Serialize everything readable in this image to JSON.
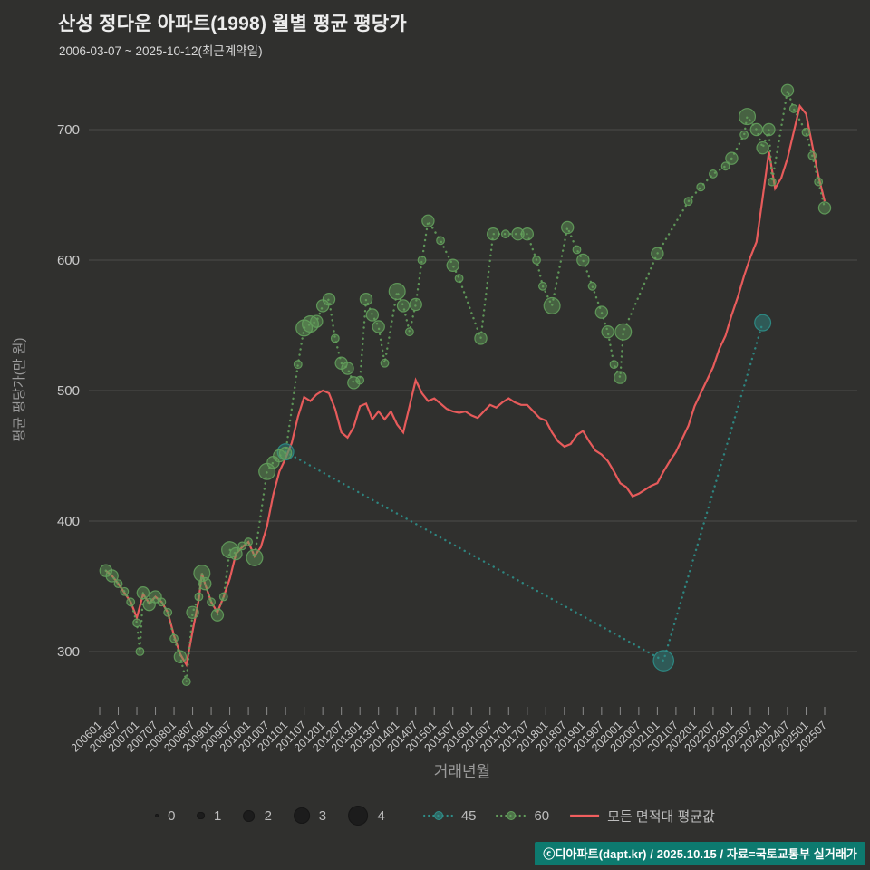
{
  "header": {
    "title": "산성 정다운 아파트(1998) 월별 평균 평당가",
    "subtitle": "2006-03-07 ~ 2025-10-12(최근계약일)"
  },
  "footer": {
    "credit": "ⓒ디아파트(dapt.kr) / 2025.10.15 / 자료=국토교통부 실거래가"
  },
  "chart_data": {
    "type": "scatter",
    "title": "산성 정다운 아파트(1998) 월별 평균 평당가",
    "subtitle": "2006-03-07 ~ 2025-10-12(최근계약일)",
    "xlabel": "거래년월",
    "ylabel": "평균 평당가(만 원)",
    "ylim": [
      255,
      745
    ],
    "yticks": [
      300,
      400,
      500,
      600,
      700
    ],
    "xticks": [
      "200601",
      "200607",
      "200701",
      "200707",
      "200801",
      "200807",
      "200901",
      "200907",
      "201001",
      "201007",
      "201101",
      "201107",
      "201201",
      "201207",
      "201301",
      "201307",
      "201401",
      "201407",
      "201501",
      "201507",
      "201601",
      "201607",
      "201701",
      "201707",
      "201801",
      "201807",
      "201901",
      "201907",
      "202001",
      "202007",
      "202101",
      "202107",
      "202201",
      "202207",
      "202301",
      "202307",
      "202401",
      "202407",
      "202501",
      "202507"
    ],
    "grid": true,
    "legend_position": "bottom",
    "bubble_size_legend": [
      0,
      1,
      2,
      3,
      4
    ],
    "colors": {
      "background": "#30302e",
      "gridline": "#4b4b49",
      "tick_text": "#c9c9c9",
      "axis_title": "#9a9a9a",
      "series_45": "#2e8f8a",
      "series_60": "#63a05c",
      "series_avg": "#f15e5e",
      "footer_bg": "#0d7a6f"
    },
    "series": [
      {
        "name": "45",
        "color": "#2e8f8a",
        "line_style": "dotted",
        "bubbles": true,
        "points": [
          [
            "201101",
            453,
            3
          ],
          [
            "202103",
            293,
            4
          ],
          [
            "202311",
            552,
            3
          ]
        ]
      },
      {
        "name": "60",
        "color": "#63a05c",
        "line_style": "dotted",
        "bubbles": true,
        "points": [
          [
            "200603",
            362,
            2
          ],
          [
            "200605",
            358,
            2
          ],
          [
            "200607",
            352,
            1
          ],
          [
            "200609",
            346,
            1
          ],
          [
            "200611",
            338,
            1
          ],
          [
            "200701",
            322,
            1
          ],
          [
            "200702",
            300,
            1
          ],
          [
            "200703",
            345,
            2
          ],
          [
            "200705",
            336,
            2
          ],
          [
            "200707",
            342,
            2
          ],
          [
            "200709",
            338,
            1
          ],
          [
            "200711",
            330,
            1
          ],
          [
            "200801",
            310,
            1
          ],
          [
            "200803",
            296,
            2
          ],
          [
            "200805",
            277,
            1
          ],
          [
            "200807",
            330,
            2
          ],
          [
            "200809",
            342,
            1
          ],
          [
            "200810",
            360,
            3
          ],
          [
            "200811",
            352,
            2
          ],
          [
            "200901",
            338,
            1
          ],
          [
            "200903",
            328,
            2
          ],
          [
            "200905",
            342,
            1
          ],
          [
            "200907",
            378,
            3
          ],
          [
            "200909",
            375,
            2
          ],
          [
            "200911",
            381,
            1
          ],
          [
            "201001",
            384,
            1
          ],
          [
            "201003",
            372,
            3
          ],
          [
            "201007",
            438,
            3
          ],
          [
            "201009",
            445,
            2
          ],
          [
            "201011",
            450,
            2
          ],
          [
            "201101",
            452,
            2
          ],
          [
            "201105",
            520,
            1
          ],
          [
            "201107",
            548,
            3
          ],
          [
            "201109",
            551,
            3
          ],
          [
            "201111",
            553,
            2
          ],
          [
            "201201",
            565,
            2
          ],
          [
            "201203",
            570,
            2
          ],
          [
            "201205",
            540,
            1
          ],
          [
            "201207",
            521,
            2
          ],
          [
            "201209",
            517,
            2
          ],
          [
            "201211",
            506,
            2
          ],
          [
            "201301",
            508,
            1
          ],
          [
            "201303",
            570,
            2
          ],
          [
            "201305",
            558,
            2
          ],
          [
            "201307",
            549,
            2
          ],
          [
            "201309",
            521,
            1
          ],
          [
            "201401",
            576,
            3
          ],
          [
            "201403",
            565,
            2
          ],
          [
            "201405",
            545,
            1
          ],
          [
            "201407",
            566,
            2
          ],
          [
            "201409",
            600,
            1
          ],
          [
            "201411",
            630,
            2
          ],
          [
            "201503",
            615,
            1
          ],
          [
            "201507",
            596,
            2
          ],
          [
            "201509",
            586,
            1
          ],
          [
            "201604",
            540,
            2
          ],
          [
            "201608",
            620,
            2
          ],
          [
            "201612",
            620,
            1
          ],
          [
            "201704",
            620,
            2
          ],
          [
            "201707",
            620,
            2
          ],
          [
            "201710",
            600,
            1
          ],
          [
            "201712",
            580,
            1
          ],
          [
            "201803",
            565,
            3
          ],
          [
            "201808",
            625,
            2
          ],
          [
            "201811",
            608,
            1
          ],
          [
            "201901",
            600,
            2
          ],
          [
            "201904",
            580,
            1
          ],
          [
            "201907",
            560,
            2
          ],
          [
            "201909",
            545,
            2
          ],
          [
            "201911",
            520,
            1
          ],
          [
            "202001",
            510,
            2
          ],
          [
            "202002",
            545,
            3
          ],
          [
            "202101",
            605,
            2
          ],
          [
            "202111",
            645,
            1
          ],
          [
            "202203",
            656,
            1
          ],
          [
            "202207",
            666,
            1
          ],
          [
            "202211",
            672,
            1
          ],
          [
            "202301",
            678,
            2
          ],
          [
            "202305",
            696,
            1
          ],
          [
            "202306",
            710,
            3
          ],
          [
            "202309",
            700,
            2
          ],
          [
            "202311",
            686,
            2
          ],
          [
            "202401",
            700,
            2
          ],
          [
            "202402",
            660,
            1
          ],
          [
            "202407",
            730,
            2
          ],
          [
            "202409",
            716,
            1
          ],
          [
            "202501",
            698,
            1
          ],
          [
            "202503",
            680,
            1
          ],
          [
            "202505",
            660,
            1
          ],
          [
            "202507",
            640,
            2
          ]
        ]
      },
      {
        "name": "모든 면적대 평균값",
        "color": "#f15e5e",
        "line_style": "solid",
        "bubbles": false,
        "points": [
          [
            "200603",
            362
          ],
          [
            "200605",
            358
          ],
          [
            "200607",
            352
          ],
          [
            "200609",
            345
          ],
          [
            "200611",
            338
          ],
          [
            "200701",
            326
          ],
          [
            "200703",
            344
          ],
          [
            "200705",
            337
          ],
          [
            "200707",
            342
          ],
          [
            "200709",
            338
          ],
          [
            "200711",
            330
          ],
          [
            "200801",
            312
          ],
          [
            "200803",
            298
          ],
          [
            "200805",
            290
          ],
          [
            "200807",
            316
          ],
          [
            "200809",
            340
          ],
          [
            "200810",
            360
          ],
          [
            "200811",
            352
          ],
          [
            "200901",
            338
          ],
          [
            "200903",
            330
          ],
          [
            "200905",
            342
          ],
          [
            "200907",
            356
          ],
          [
            "200909",
            375
          ],
          [
            "200911",
            380
          ],
          [
            "201001",
            384
          ],
          [
            "201003",
            373
          ],
          [
            "201005",
            380
          ],
          [
            "201007",
            396
          ],
          [
            "201009",
            420
          ],
          [
            "201011",
            438
          ],
          [
            "201101",
            448
          ],
          [
            "201103",
            460
          ],
          [
            "201105",
            480
          ],
          [
            "201107",
            495
          ],
          [
            "201109",
            492
          ],
          [
            "201111",
            497
          ],
          [
            "201201",
            500
          ],
          [
            "201203",
            498
          ],
          [
            "201205",
            486
          ],
          [
            "201207",
            468
          ],
          [
            "201209",
            464
          ],
          [
            "201211",
            472
          ],
          [
            "201301",
            488
          ],
          [
            "201303",
            490
          ],
          [
            "201305",
            478
          ],
          [
            "201307",
            484
          ],
          [
            "201309",
            478
          ],
          [
            "201311",
            484
          ],
          [
            "201401",
            474
          ],
          [
            "201403",
            468
          ],
          [
            "201405",
            488
          ],
          [
            "201407",
            508
          ],
          [
            "201409",
            498
          ],
          [
            "201411",
            492
          ],
          [
            "201501",
            494
          ],
          [
            "201503",
            490
          ],
          [
            "201505",
            486
          ],
          [
            "201507",
            484
          ],
          [
            "201509",
            483
          ],
          [
            "201511",
            484
          ],
          [
            "201601",
            481
          ],
          [
            "201603",
            479
          ],
          [
            "201605",
            484
          ],
          [
            "201607",
            489
          ],
          [
            "201609",
            487
          ],
          [
            "201611",
            491
          ],
          [
            "201701",
            494
          ],
          [
            "201703",
            491
          ],
          [
            "201705",
            489
          ],
          [
            "201707",
            489
          ],
          [
            "201709",
            484
          ],
          [
            "201711",
            479
          ],
          [
            "201801",
            477
          ],
          [
            "201803",
            468
          ],
          [
            "201805",
            461
          ],
          [
            "201807",
            457
          ],
          [
            "201809",
            459
          ],
          [
            "201811",
            466
          ],
          [
            "201901",
            469
          ],
          [
            "201903",
            461
          ],
          [
            "201905",
            454
          ],
          [
            "201907",
            451
          ],
          [
            "201909",
            446
          ],
          [
            "201911",
            438
          ],
          [
            "202001",
            429
          ],
          [
            "202003",
            426
          ],
          [
            "202005",
            419
          ],
          [
            "202007",
            421
          ],
          [
            "202009",
            424
          ],
          [
            "202011",
            427
          ],
          [
            "202101",
            429
          ],
          [
            "202103",
            438
          ],
          [
            "202105",
            446
          ],
          [
            "202107",
            453
          ],
          [
            "202109",
            463
          ],
          [
            "202111",
            473
          ],
          [
            "202201",
            488
          ],
          [
            "202203",
            498
          ],
          [
            "202205",
            508
          ],
          [
            "202207",
            518
          ],
          [
            "202209",
            532
          ],
          [
            "202211",
            542
          ],
          [
            "202301",
            558
          ],
          [
            "202303",
            572
          ],
          [
            "202305",
            588
          ],
          [
            "202307",
            602
          ],
          [
            "202309",
            614
          ],
          [
            "202311",
            648
          ],
          [
            "202401",
            683
          ],
          [
            "202403",
            655
          ],
          [
            "202405",
            663
          ],
          [
            "202407",
            678
          ],
          [
            "202409",
            698
          ],
          [
            "202411",
            718
          ],
          [
            "202501",
            712
          ],
          [
            "202503",
            688
          ],
          [
            "202505",
            664
          ],
          [
            "202507",
            645
          ]
        ]
      }
    ]
  }
}
